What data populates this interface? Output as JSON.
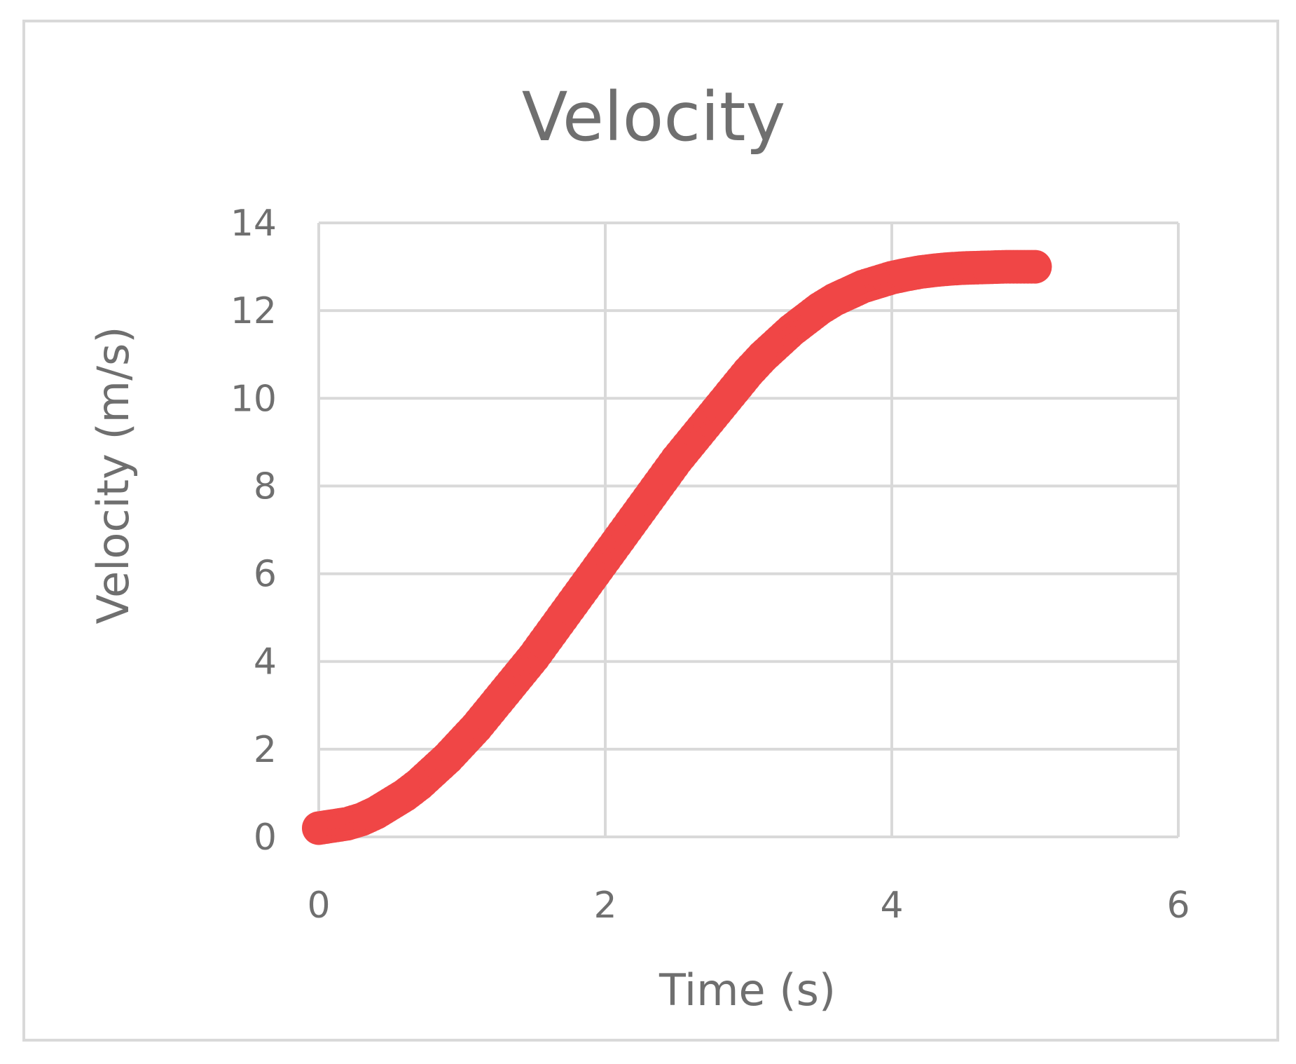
{
  "chart_data": {
    "type": "scatter",
    "title": "Velocity",
    "xlabel": "Time (s)",
    "ylabel": "Velocity (m/s)",
    "xlim": [
      0,
      6
    ],
    "ylim": [
      0,
      14
    ],
    "x_ticks": [
      0,
      2,
      4,
      6
    ],
    "y_ticks": [
      0,
      2,
      4,
      6,
      8,
      10,
      12,
      14
    ],
    "grid": true,
    "legend": "none",
    "series": [
      {
        "name": "Velocity",
        "color": "#f04646",
        "x": [
          0.0,
          0.1,
          0.2,
          0.3,
          0.4,
          0.5,
          0.6,
          0.7,
          0.8,
          0.9,
          1.0,
          1.1,
          1.2,
          1.3,
          1.4,
          1.5,
          1.6,
          1.7,
          1.8,
          1.9,
          2.0,
          2.1,
          2.2,
          2.3,
          2.4,
          2.5,
          2.6,
          2.7,
          2.8,
          2.9,
          3.0,
          3.1,
          3.2,
          3.3,
          3.4,
          3.5,
          3.6,
          3.7,
          3.8,
          3.9,
          4.0,
          4.1,
          4.2,
          4.3,
          4.4,
          4.5,
          4.6,
          4.7,
          4.8,
          4.9,
          5.0
        ],
        "y": [
          0.2,
          0.25,
          0.3,
          0.4,
          0.55,
          0.75,
          0.95,
          1.2,
          1.5,
          1.8,
          2.15,
          2.5,
          2.9,
          3.3,
          3.7,
          4.1,
          4.55,
          5.0,
          5.45,
          5.9,
          6.35,
          6.8,
          7.25,
          7.7,
          8.15,
          8.6,
          9.0,
          9.4,
          9.8,
          10.2,
          10.6,
          10.95,
          11.25,
          11.55,
          11.8,
          12.05,
          12.25,
          12.4,
          12.55,
          12.65,
          12.75,
          12.82,
          12.88,
          12.92,
          12.95,
          12.97,
          12.98,
          12.99,
          13.0,
          13.0,
          13.0
        ]
      }
    ]
  }
}
